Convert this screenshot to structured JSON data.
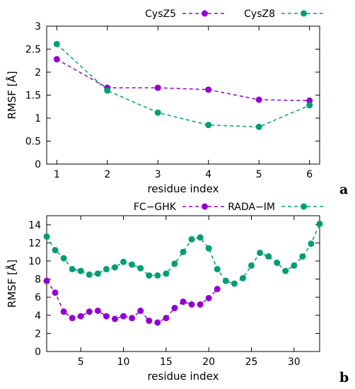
{
  "chart_data": [
    {
      "type": "line",
      "panel_label": "a",
      "xlabel": "residue index",
      "ylabel": "RMSF [Å]",
      "xlim": [
        0.8,
        6.2
      ],
      "ylim": [
        0,
        3
      ],
      "xticks": [
        1,
        2,
        3,
        4,
        5,
        6
      ],
      "yticks": [
        0,
        0.5,
        1,
        1.5,
        2,
        2.5,
        3
      ],
      "ytick_labels": [
        "0",
        "0.5",
        "1",
        "1.5",
        "2",
        "2.5",
        "3"
      ],
      "grid": false,
      "legend_position": "top-right",
      "x": [
        1,
        2,
        3,
        4,
        5,
        6
      ],
      "series": [
        {
          "name": "CysZ5",
          "color": "#9400d3",
          "values": [
            2.28,
            1.66,
            1.66,
            1.62,
            1.4,
            1.38
          ]
        },
        {
          "name": "CysZ8",
          "color": "#009e73",
          "values": [
            2.61,
            1.6,
            1.12,
            0.85,
            0.81,
            1.28
          ]
        }
      ]
    },
    {
      "type": "line",
      "panel_label": "b",
      "xlabel": "residue index",
      "ylabel": "RMSF [Å]",
      "xlim": [
        1,
        33
      ],
      "ylim": [
        0,
        15
      ],
      "xticks": [
        5,
        10,
        15,
        20,
        25,
        30
      ],
      "yticks": [
        0,
        2,
        4,
        6,
        8,
        10,
        12,
        14
      ],
      "ytick_labels": [
        "0",
        "2",
        "4",
        "6",
        "8",
        "10",
        "12",
        "14"
      ],
      "grid": false,
      "legend_position": "top-right",
      "series": [
        {
          "name": "FC−GHK",
          "color": "#9400d3",
          "x": [
            1,
            2,
            3,
            4,
            5,
            6,
            7,
            8,
            9,
            10,
            11,
            12,
            13,
            14,
            15,
            16,
            17,
            18,
            19,
            20,
            21
          ],
          "values": [
            7.8,
            6.5,
            4.4,
            3.7,
            3.9,
            4.4,
            4.5,
            3.9,
            3.6,
            3.9,
            3.7,
            4.5,
            3.4,
            3.2,
            3.7,
            4.8,
            5.5,
            5.2,
            5.2,
            5.9,
            6.9
          ]
        },
        {
          "name": "RADA−IM",
          "color": "#009e73",
          "x": [
            1,
            2,
            3,
            4,
            5,
            6,
            7,
            8,
            9,
            10,
            11,
            12,
            13,
            14,
            15,
            16,
            17,
            18,
            19,
            20,
            21,
            22,
            23,
            24,
            25,
            26,
            27,
            28,
            29,
            30,
            31,
            32,
            33
          ],
          "values": [
            12.7,
            11.2,
            10.3,
            9.1,
            8.9,
            8.5,
            8.6,
            9.1,
            9.3,
            9.9,
            9.6,
            9.2,
            8.4,
            8.4,
            8.6,
            9.7,
            11.0,
            12.4,
            12.6,
            11.4,
            9.1,
            7.8,
            7.5,
            8.1,
            9.5,
            10.9,
            10.5,
            9.8,
            8.9,
            9.5,
            10.5,
            11.9,
            14.1
          ]
        }
      ]
    }
  ]
}
